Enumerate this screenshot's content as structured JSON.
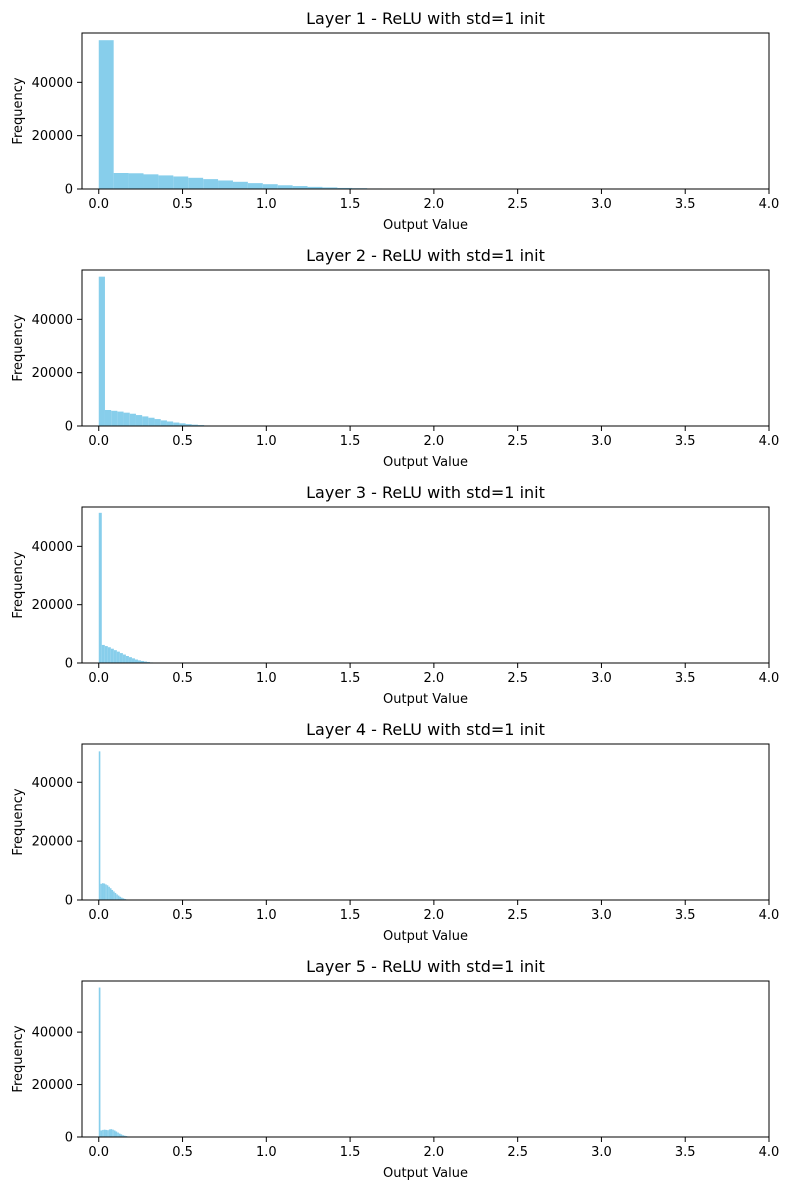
{
  "figure": {
    "bar_color": "#87ceeb",
    "axis_color": "#000000"
  },
  "chart_data": [
    {
      "type": "bar",
      "title": "Layer 1 - ReLU with std=1 init",
      "xlabel": "Output Value",
      "ylabel": "Frequency",
      "xlim": [
        -0.1,
        4.0
      ],
      "ylim": [
        0,
        58500
      ],
      "xticks": [
        "0.0",
        "0.5",
        "1.0",
        "1.5",
        "2.0",
        "2.5",
        "3.0",
        "3.5",
        "4.0"
      ],
      "yticks": [
        "0",
        "20000",
        "40000"
      ],
      "grid": false,
      "bin_width": 0.089,
      "x": [
        0.0,
        0.089,
        0.178,
        0.267,
        0.356,
        0.445,
        0.534,
        0.623,
        0.712,
        0.801,
        0.89,
        0.979,
        1.068,
        1.157,
        1.246,
        1.335,
        1.424,
        1.513,
        1.602,
        1.691
      ],
      "values": [
        55800,
        6000,
        5900,
        5500,
        5100,
        4700,
        4200,
        3700,
        3200,
        2700,
        2200,
        1800,
        1400,
        1100,
        800,
        600,
        400,
        300,
        200,
        100
      ]
    },
    {
      "type": "bar",
      "title": "Layer 2 - ReLU with std=1 init",
      "xlabel": "Output Value",
      "ylabel": "Frequency",
      "xlim": [
        -0.1,
        4.0
      ],
      "ylim": [
        0,
        58500
      ],
      "xticks": [
        "0.0",
        "0.5",
        "1.0",
        "1.5",
        "2.0",
        "2.5",
        "3.0",
        "3.5",
        "4.0"
      ],
      "yticks": [
        "0",
        "20000",
        "40000"
      ],
      "grid": false,
      "bin_width": 0.037,
      "x": [
        0.0,
        0.037,
        0.074,
        0.111,
        0.148,
        0.185,
        0.222,
        0.259,
        0.296,
        0.333,
        0.37,
        0.407,
        0.444,
        0.481,
        0.518,
        0.555,
        0.592,
        0.629,
        0.666,
        0.703
      ],
      "values": [
        56000,
        6000,
        5700,
        5400,
        5000,
        4600,
        4100,
        3600,
        3100,
        2600,
        2100,
        1700,
        1300,
        1000,
        700,
        500,
        350,
        200,
        120,
        60
      ]
    },
    {
      "type": "bar",
      "title": "Layer 3 - ReLU with std=1 init",
      "xlabel": "Output Value",
      "ylabel": "Frequency",
      "xlim": [
        -0.1,
        4.0
      ],
      "ylim": [
        0,
        53500
      ],
      "xticks": [
        "0.0",
        "0.5",
        "1.0",
        "1.5",
        "2.0",
        "2.5",
        "3.0",
        "3.5",
        "4.0"
      ],
      "yticks": [
        "0",
        "20000",
        "40000"
      ],
      "grid": false,
      "bin_width": 0.018,
      "x": [
        0.0,
        0.018,
        0.036,
        0.054,
        0.072,
        0.09,
        0.108,
        0.126,
        0.144,
        0.162,
        0.18,
        0.198,
        0.216,
        0.234,
        0.252,
        0.27,
        0.288,
        0.306,
        0.324,
        0.342
      ],
      "values": [
        51500,
        6200,
        5800,
        5400,
        4900,
        4400,
        3900,
        3400,
        2900,
        2400,
        2000,
        1600,
        1200,
        900,
        700,
        500,
        350,
        200,
        120,
        60
      ]
    },
    {
      "type": "bar",
      "title": "Layer 4 - ReLU with std=1 init",
      "xlabel": "Output Value",
      "ylabel": "Frequency",
      "xlim": [
        -0.1,
        4.0
      ],
      "ylim": [
        0,
        53000
      ],
      "xticks": [
        "0.0",
        "0.5",
        "1.0",
        "1.5",
        "2.0",
        "2.5",
        "3.0",
        "3.5",
        "4.0"
      ],
      "yticks": [
        "0",
        "20000",
        "40000"
      ],
      "grid": false,
      "bin_width": 0.0095,
      "x": [
        0.0,
        0.0095,
        0.019,
        0.0285,
        0.038,
        0.0475,
        0.057,
        0.0665,
        0.076,
        0.0855,
        0.095,
        0.1045,
        0.114,
        0.1235,
        0.133,
        0.1425,
        0.152,
        0.1615,
        0.171,
        0.1805
      ],
      "values": [
        50500,
        5500,
        5700,
        5600,
        5300,
        5000,
        4500,
        4000,
        3400,
        2900,
        2400,
        1900,
        1500,
        1100,
        800,
        550,
        350,
        200,
        100,
        50
      ]
    },
    {
      "type": "bar",
      "title": "Layer 5 - ReLU with std=1 init",
      "xlabel": "Output Value",
      "ylabel": "Frequency",
      "xlim": [
        -0.1,
        4.0
      ],
      "ylim": [
        0,
        59500
      ],
      "xticks": [
        "0.0",
        "0.5",
        "1.0",
        "1.5",
        "2.0",
        "2.5",
        "3.0",
        "3.5",
        "4.0"
      ],
      "yticks": [
        "0",
        "20000",
        "40000"
      ],
      "grid": false,
      "bin_width": 0.01,
      "x": [
        0.0,
        0.01,
        0.02,
        0.03,
        0.04,
        0.05,
        0.06,
        0.07,
        0.08,
        0.09,
        0.1,
        0.11,
        0.12,
        0.13,
        0.14,
        0.15,
        0.16,
        0.17,
        0.18,
        0.19
      ],
      "values": [
        57000,
        2500,
        2700,
        2800,
        2700,
        2600,
        2900,
        3000,
        2800,
        2500,
        2100,
        1700,
        1300,
        1000,
        700,
        500,
        350,
        200,
        120,
        60
      ]
    }
  ]
}
